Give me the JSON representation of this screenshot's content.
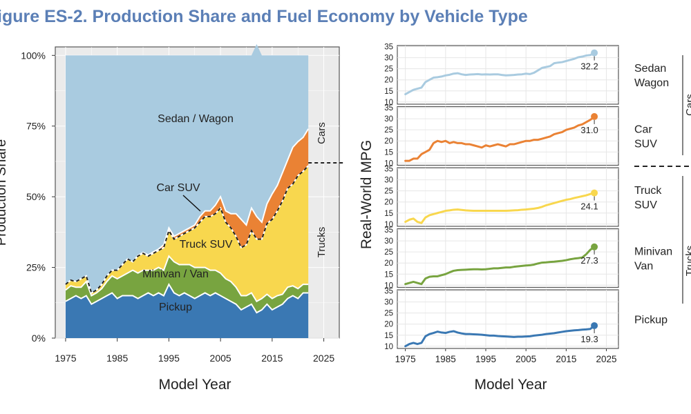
{
  "figure_title": "igure ES-2. Production Share and Fuel Economy by Vehicle Type",
  "colors": {
    "sedan_wagon": "#a9cbe0",
    "car_suv": "#ea8234",
    "truck_suv": "#f8d74e",
    "minivan_van": "#78a440",
    "pickup": "#3a78b3",
    "panel_bg": "#ebebeb",
    "grid": "#ffffff"
  },
  "chart_data": [
    {
      "type": "area",
      "title": "",
      "xlabel": "Model Year",
      "ylabel": "Production Share",
      "xlim": [
        1973,
        2028
      ],
      "ylim": [
        0,
        1.03
      ],
      "x_ticks": [
        1975,
        1985,
        1995,
        2005,
        2015,
        2025
      ],
      "y_ticks": [
        0,
        0.25,
        0.5,
        0.75,
        1.0
      ],
      "y_tick_labels": [
        "0%",
        "25%",
        "50%",
        "75%",
        "100%"
      ],
      "stacking": "cumulative",
      "grid": true,
      "x": [
        1975,
        1976,
        1977,
        1978,
        1979,
        1980,
        1981,
        1982,
        1983,
        1984,
        1985,
        1986,
        1987,
        1988,
        1989,
        1990,
        1991,
        1992,
        1993,
        1994,
        1995,
        1996,
        1997,
        1998,
        1999,
        2000,
        2001,
        2002,
        2003,
        2004,
        2005,
        2006,
        2007,
        2008,
        2009,
        2010,
        2011,
        2012,
        2013,
        2014,
        2015,
        2016,
        2017,
        2018,
        2019,
        2020,
        2021,
        2022
      ],
      "series": [
        {
          "name": "Pickup",
          "key": "pickup",
          "values": [
            0.13,
            0.14,
            0.15,
            0.14,
            0.15,
            0.12,
            0.13,
            0.14,
            0.15,
            0.16,
            0.14,
            0.15,
            0.15,
            0.15,
            0.14,
            0.15,
            0.16,
            0.15,
            0.16,
            0.15,
            0.19,
            0.16,
            0.15,
            0.16,
            0.15,
            0.14,
            0.15,
            0.16,
            0.15,
            0.16,
            0.15,
            0.14,
            0.13,
            0.12,
            0.1,
            0.11,
            0.12,
            0.09,
            0.1,
            0.12,
            0.1,
            0.11,
            0.12,
            0.14,
            0.15,
            0.14,
            0.16,
            0.16
          ]
        },
        {
          "name": "Minivan / Van",
          "key": "minivan_van",
          "values": [
            0.04,
            0.045,
            0.03,
            0.04,
            0.05,
            0.03,
            0.03,
            0.035,
            0.05,
            0.06,
            0.07,
            0.07,
            0.08,
            0.09,
            0.09,
            0.09,
            0.08,
            0.09,
            0.09,
            0.09,
            0.1,
            0.11,
            0.11,
            0.1,
            0.11,
            0.11,
            0.1,
            0.09,
            0.09,
            0.08,
            0.08,
            0.07,
            0.07,
            0.06,
            0.05,
            0.04,
            0.04,
            0.04,
            0.04,
            0.035,
            0.04,
            0.04,
            0.035,
            0.04,
            0.035,
            0.035,
            0.03,
            0.03
          ]
        },
        {
          "name": "Truck SUV",
          "key": "truck_suv",
          "values": [
            0.02,
            0.02,
            0.02,
            0.03,
            0.02,
            0.01,
            0.01,
            0.015,
            0.02,
            0.02,
            0.03,
            0.04,
            0.05,
            0.03,
            0.06,
            0.06,
            0.05,
            0.06,
            0.06,
            0.08,
            0.09,
            0.08,
            0.1,
            0.11,
            0.12,
            0.14,
            0.16,
            0.18,
            0.19,
            0.2,
            0.23,
            0.2,
            0.19,
            0.18,
            0.17,
            0.18,
            0.22,
            0.22,
            0.21,
            0.25,
            0.28,
            0.3,
            0.33,
            0.35,
            0.36,
            0.4,
            0.4,
            0.42
          ]
        },
        {
          "name": "Car SUV",
          "key": "car_suv",
          "values": [
            0,
            0,
            0,
            0,
            0,
            0,
            0,
            0,
            0,
            0,
            0,
            0,
            0,
            0,
            0.002,
            0.003,
            0.004,
            0.005,
            0.005,
            0.01,
            0.01,
            0.01,
            0.01,
            0.01,
            0.01,
            0.01,
            0.02,
            0.02,
            0.02,
            0.03,
            0.04,
            0.04,
            0.05,
            0.08,
            0.1,
            0.07,
            0.08,
            0.08,
            0.06,
            0.07,
            0.09,
            0.09,
            0.1,
            0.1,
            0.13,
            0.12,
            0.12,
            0.13
          ]
        },
        {
          "name": "Sedan / Wagon",
          "key": "sedan_wagon",
          "values": [
            0.81,
            0.795,
            0.8,
            0.79,
            0.78,
            0.84,
            0.83,
            0.81,
            0.78,
            0.76,
            0.76,
            0.74,
            0.72,
            0.73,
            0.708,
            0.697,
            0.706,
            0.695,
            0.685,
            0.67,
            0.61,
            0.64,
            0.63,
            0.62,
            0.61,
            0.6,
            0.57,
            0.55,
            0.55,
            0.53,
            0.5,
            0.55,
            0.56,
            0.56,
            0.58,
            0.6,
            0.54,
            0.61,
            0.59,
            0.525,
            0.49,
            0.46,
            0.415,
            0.37,
            0.325,
            0.305,
            0.29,
            0.26
          ]
        }
      ],
      "threshold": {
        "value": 0.62,
        "upper_label": "Cars",
        "lower_label": "Trucks"
      },
      "labels": {
        "sedan_wagon": "Sedan / Wagon",
        "car_suv": "Car SUV",
        "truck_suv": "Truck SUV",
        "minivan_van": "Minivan / Van",
        "pickup": "Pickup"
      }
    },
    {
      "type": "line",
      "title": "",
      "xlabel": "Model Year",
      "ylabel": "Real-World MPG",
      "xlim": [
        1973,
        2028
      ],
      "ylim": [
        9,
        35.5
      ],
      "x_ticks": [
        1975,
        1985,
        1995,
        2005,
        2015,
        2025
      ],
      "y_ticks": [
        10,
        15,
        20,
        25,
        30,
        35
      ],
      "grid": true,
      "x": [
        1975,
        1976,
        1977,
        1978,
        1979,
        1980,
        1981,
        1982,
        1983,
        1984,
        1985,
        1986,
        1987,
        1988,
        1989,
        1990,
        1991,
        1992,
        1993,
        1994,
        1995,
        1996,
        1997,
        1998,
        1999,
        2000,
        2001,
        2002,
        2003,
        2004,
        2005,
        2006,
        2007,
        2008,
        2009,
        2010,
        2011,
        2012,
        2013,
        2014,
        2015,
        2016,
        2017,
        2018,
        2019,
        2020,
        2021,
        2022
      ],
      "series": [
        {
          "name": "Sedan Wagon",
          "key": "sedan_wagon",
          "final_label": "32.2",
          "values": [
            13.5,
            14.5,
            15.5,
            16,
            16.5,
            19,
            20,
            21,
            21.2,
            21.5,
            22,
            22.3,
            22.8,
            23,
            22.5,
            22.2,
            22.4,
            22.5,
            22.6,
            22.4,
            22.5,
            22.4,
            22.5,
            22.5,
            22.2,
            22,
            22.1,
            22.2,
            22.4,
            22.5,
            22.8,
            22.6,
            23.2,
            24.3,
            25.4,
            25.8,
            26.2,
            27.5,
            27.8,
            28,
            28.5,
            29,
            29.5,
            30.2,
            30.5,
            31,
            31.2,
            32.2
          ]
        },
        {
          "name": "Car SUV",
          "key": "car_suv",
          "final_label": "31.0",
          "values": [
            11,
            11,
            12,
            12,
            14,
            15,
            16,
            19,
            20,
            19.5,
            20,
            19,
            19.5,
            19,
            19,
            18.5,
            18.5,
            18,
            17.5,
            17,
            18,
            17.5,
            18,
            18.5,
            18,
            17.5,
            18.5,
            18.5,
            19,
            19.5,
            20,
            20,
            20.5,
            20.5,
            21,
            21.5,
            22,
            23,
            23.5,
            24,
            25,
            25.5,
            26,
            27,
            27.5,
            28.5,
            29.5,
            31.0
          ]
        },
        {
          "name": "Truck SUV",
          "key": "truck_suv",
          "final_label": "24.1",
          "values": [
            11,
            12,
            12.5,
            11,
            10.5,
            13,
            14,
            14.5,
            15,
            15.5,
            16,
            16.2,
            16.5,
            16.6,
            16.4,
            16.2,
            16.1,
            16,
            16,
            16,
            16,
            16,
            16,
            16,
            16,
            16,
            16.1,
            16.2,
            16.3,
            16.5,
            16.6,
            16.8,
            17,
            17.3,
            17.8,
            18.5,
            19,
            19.5,
            20,
            20.5,
            21,
            21.3,
            21.8,
            22.2,
            22.6,
            23,
            23.6,
            24.1
          ]
        },
        {
          "name": "Minivan Van",
          "key": "minivan_van",
          "final_label": "27.3",
          "values": [
            10.5,
            11,
            11.5,
            11,
            10.5,
            13,
            13.8,
            14,
            14,
            14.5,
            15,
            15.8,
            16.5,
            16.8,
            16.9,
            17,
            17.1,
            17.2,
            17.2,
            17.1,
            17.2,
            17.4,
            17.6,
            17.6,
            17.8,
            18,
            18,
            18.3,
            18.5,
            18.7,
            18.9,
            19,
            19.3,
            19.8,
            20.2,
            20.3,
            20.5,
            20.6,
            20.8,
            21,
            21.3,
            21.7,
            22,
            22.2,
            22.5,
            24,
            26,
            27.3
          ]
        },
        {
          "name": "Pickup",
          "key": "pickup",
          "final_label": "19.3",
          "values": [
            10,
            11,
            11.5,
            11,
            11.5,
            14.5,
            15.5,
            16,
            16.6,
            16.2,
            16,
            16.5,
            16.8,
            16.2,
            15.8,
            15.5,
            15.5,
            15.4,
            15.3,
            15.2,
            15,
            14.8,
            14.8,
            14.6,
            14.5,
            14.4,
            14.3,
            14.2,
            14.3,
            14.3,
            14.4,
            14.5,
            14.8,
            15,
            15.2,
            15.5,
            15.7,
            15.9,
            16.2,
            16.5,
            16.8,
            17,
            17.2,
            17.3,
            17.5,
            17.6,
            17.8,
            19.3
          ]
        }
      ],
      "facet_labels": {
        "sedan_wagon": [
          "Sedan",
          "Wagon"
        ],
        "car_suv": [
          "Car",
          "SUV"
        ],
        "truck_suv": [
          "Truck",
          "SUV"
        ],
        "minivan_van": [
          "Minivan",
          "Van"
        ],
        "pickup": [
          "Pickup"
        ]
      },
      "group_labels": {
        "cars": "Cars",
        "trucks": "Trucks"
      }
    }
  ]
}
